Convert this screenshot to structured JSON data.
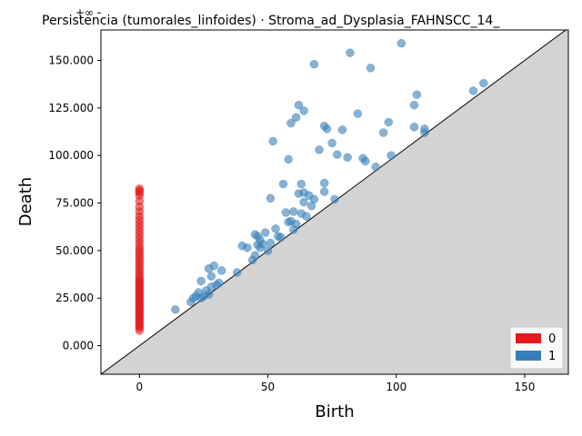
{
  "chart_data": {
    "type": "scatter",
    "title": "Persistencia (tumorales_linfoides) · Stroma_ad_Dysplasia_FAHNSCC_14_",
    "xlabel": "Birth",
    "ylabel": "Death",
    "xlim": [
      -15,
      167
    ],
    "ylim": [
      -15000,
      166000
    ],
    "x_ticks": [
      0,
      50,
      100,
      150
    ],
    "y_ticks": [
      0,
      25000,
      50000,
      75000,
      100000,
      125000,
      150000
    ],
    "y_tick_labels": [
      "0.000",
      "25.000",
      "50.000",
      "75.000",
      "100.000",
      "125.000",
      "150.000"
    ],
    "infinity_label": "+∞",
    "infinity_level": 175000,
    "diagonal": true,
    "legend": {
      "placement": "lower-right",
      "entries": [
        {
          "label": "0",
          "color": "#e41a1c"
        },
        {
          "label": "1",
          "color": "#377eb8"
        }
      ]
    },
    "series": [
      {
        "name": "0",
        "color": "#e41a1c",
        "points": [
          [
            0,
            8000
          ],
          [
            0,
            9500
          ],
          [
            0,
            10500
          ],
          [
            0,
            11500
          ],
          [
            0,
            12500
          ],
          [
            0,
            13500
          ],
          [
            0,
            14500
          ],
          [
            0,
            15500
          ],
          [
            0,
            16500
          ],
          [
            0,
            17500
          ],
          [
            0,
            18500
          ],
          [
            0,
            19500
          ],
          [
            0,
            20500
          ],
          [
            0,
            21500
          ],
          [
            0,
            22500
          ],
          [
            0,
            23500
          ],
          [
            0,
            24500
          ],
          [
            0,
            25500
          ],
          [
            0,
            26500
          ],
          [
            0,
            27500
          ],
          [
            0,
            28500
          ],
          [
            0,
            29500
          ],
          [
            0,
            30500
          ],
          [
            0,
            31500
          ],
          [
            0,
            32500
          ],
          [
            0,
            33500
          ],
          [
            0,
            34500
          ],
          [
            0,
            35500
          ],
          [
            0,
            37000
          ],
          [
            0,
            38500
          ],
          [
            0,
            40000
          ],
          [
            0,
            41500
          ],
          [
            0,
            43000
          ],
          [
            0,
            44500
          ],
          [
            0,
            46000
          ],
          [
            0,
            47500
          ],
          [
            0,
            49000
          ],
          [
            0,
            50500
          ],
          [
            0,
            52000
          ],
          [
            0,
            54000
          ],
          [
            0,
            56000
          ],
          [
            0,
            58000
          ],
          [
            0,
            60000
          ],
          [
            0,
            62000
          ],
          [
            0,
            64000
          ],
          [
            0,
            66000
          ],
          [
            0,
            68000
          ],
          [
            0,
            70500
          ],
          [
            0,
            73000
          ],
          [
            0,
            76000
          ],
          [
            0,
            79000
          ],
          [
            0,
            80500
          ],
          [
            0,
            81500
          ],
          [
            0,
            82500
          ],
          [
            0,
            175000
          ]
        ]
      },
      {
        "name": "1",
        "color": "#377eb8",
        "points": [
          [
            14,
            19000
          ],
          [
            20,
            23000
          ],
          [
            21,
            25000
          ],
          [
            22,
            26000
          ],
          [
            23,
            28000
          ],
          [
            24,
            25000
          ],
          [
            24,
            34000
          ],
          [
            25,
            26000
          ],
          [
            26,
            29000
          ],
          [
            27,
            27000
          ],
          [
            27,
            40500
          ],
          [
            28,
            31000
          ],
          [
            28,
            36500
          ],
          [
            29,
            42000
          ],
          [
            30,
            32000
          ],
          [
            31,
            33000
          ],
          [
            32,
            39500
          ],
          [
            38,
            38500
          ],
          [
            40,
            52500
          ],
          [
            42,
            51500
          ],
          [
            44,
            45000
          ],
          [
            45,
            47500
          ],
          [
            45,
            58500
          ],
          [
            46,
            53000
          ],
          [
            46,
            57500
          ],
          [
            47,
            51500
          ],
          [
            47,
            55500
          ],
          [
            48,
            53500
          ],
          [
            49,
            59500
          ],
          [
            50,
            50000
          ],
          [
            51,
            77500
          ],
          [
            51,
            54000
          ],
          [
            52,
            107500
          ],
          [
            53,
            61500
          ],
          [
            54,
            57500
          ],
          [
            55,
            57000
          ],
          [
            56,
            85000
          ],
          [
            57,
            70000
          ],
          [
            58,
            65000
          ],
          [
            58,
            98000
          ],
          [
            59,
            65500
          ],
          [
            59,
            117000
          ],
          [
            60,
            61000
          ],
          [
            60,
            70500
          ],
          [
            61,
            120000
          ],
          [
            61,
            64000
          ],
          [
            62,
            126500
          ],
          [
            62,
            80000
          ],
          [
            63,
            85000
          ],
          [
            63,
            69500
          ],
          [
            64,
            123500
          ],
          [
            64,
            80500
          ],
          [
            64,
            75500
          ],
          [
            65,
            68000
          ],
          [
            66,
            79000
          ],
          [
            67,
            73500
          ],
          [
            68,
            148000
          ],
          [
            68,
            77000
          ],
          [
            70,
            103000
          ],
          [
            72,
            115500
          ],
          [
            72,
            85500
          ],
          [
            72,
            81000
          ],
          [
            73,
            114000
          ],
          [
            75,
            106500
          ],
          [
            76,
            77000
          ],
          [
            77,
            100500
          ],
          [
            79,
            113500
          ],
          [
            81,
            99000
          ],
          [
            82,
            154000
          ],
          [
            85,
            122000
          ],
          [
            87,
            98500
          ],
          [
            88,
            97000
          ],
          [
            90,
            146000
          ],
          [
            92,
            94000
          ],
          [
            95,
            112000
          ],
          [
            97,
            117500
          ],
          [
            98,
            100000
          ],
          [
            102,
            159000
          ],
          [
            107,
            126500
          ],
          [
            107,
            115000
          ],
          [
            108,
            132000
          ],
          [
            111,
            114000
          ],
          [
            111,
            112000
          ],
          [
            130,
            134000
          ],
          [
            134,
            138000
          ]
        ]
      }
    ]
  }
}
